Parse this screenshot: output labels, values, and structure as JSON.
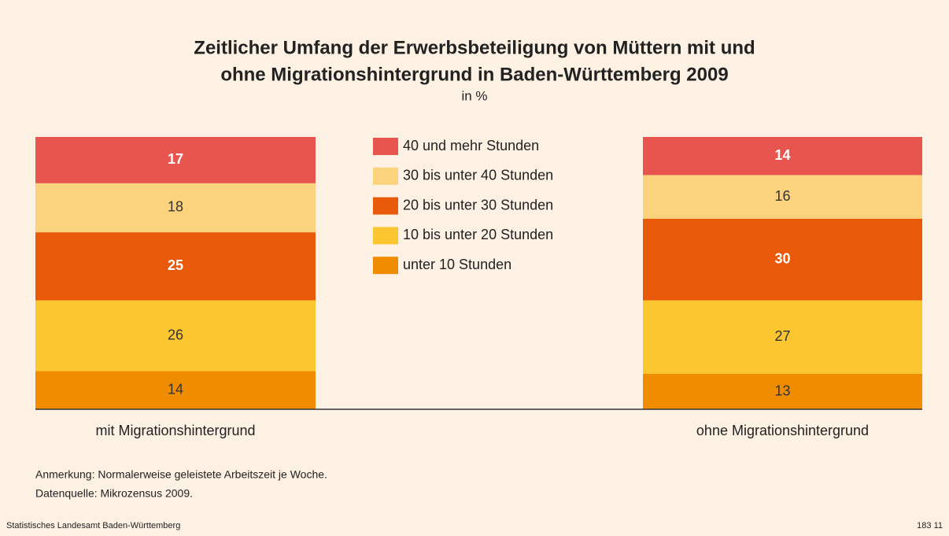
{
  "chart_data": {
    "type": "stacked_bar",
    "title": [
      "Zeitlicher Umfang der Erwerbsbeteiligung von Müttern mit und",
      "ohne Migrationshintergrund in Baden-Württemberg 2009"
    ],
    "subtitle": "in %",
    "categories": [
      "mit Migrationshintergrund",
      "ohne Migrationshintergrund"
    ],
    "series": [
      {
        "name": "unter 10 Stunden",
        "color": "#f08c00",
        "label_color": "#333333",
        "values": [
          14,
          13
        ]
      },
      {
        "name": "10 bis unter 20 Stunden",
        "color": "#fcc630",
        "label_color": "#333333",
        "values": [
          26,
          27
        ]
      },
      {
        "name": "20 bis unter 30 Stunden",
        "color": "#e85a0a",
        "label_color": "#ffffff",
        "values": [
          25,
          30
        ]
      },
      {
        "name": "30 bis unter 40 Stunden",
        "color": "#fbd37c",
        "label_color": "#333333",
        "values": [
          18,
          16
        ]
      },
      {
        "name": "40 und mehr Stunden",
        "color": "#e8554f",
        "label_color": "#ffffff",
        "values": [
          17,
          14
        ]
      }
    ],
    "ylim": [
      0,
      100
    ],
    "notes": [
      "Anmerkung: Normalerweise geleistete Arbeitszeit je Woche.",
      "Datenquelle: Mikrozensus 2009."
    ],
    "footer": "Statistisches Landesamt Baden-Württemberg",
    "code": "183 11"
  }
}
